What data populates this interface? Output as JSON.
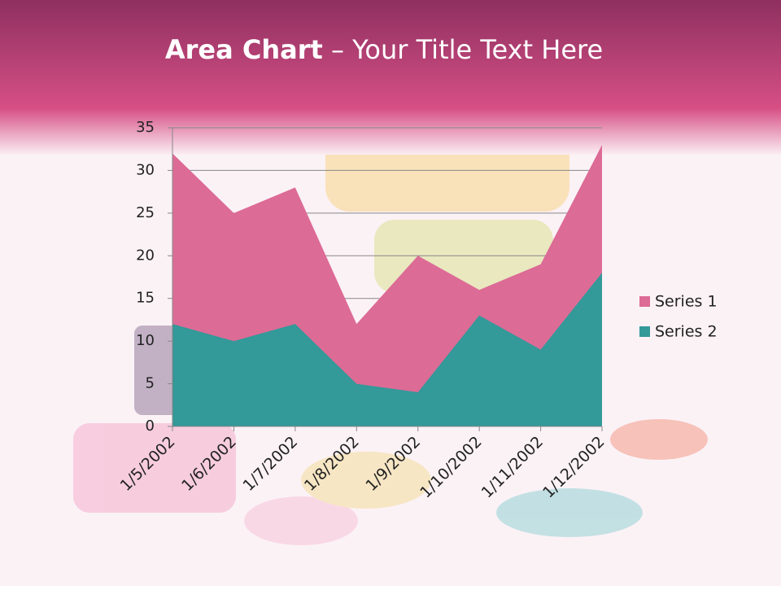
{
  "chart_data": {
    "type": "area",
    "title_bold": "Area Chart",
    "title_rest": "– Your Title Text Here",
    "categories": [
      "1/5/2002",
      "1/6/2002",
      "1/7/2002",
      "1/8/2002",
      "1/9/2002",
      "1/10/2002",
      "1/11/2002",
      "1/12/2002"
    ],
    "series": [
      {
        "name": "Series 1",
        "color": "#dc6b96",
        "values": [
          32,
          25,
          28,
          12,
          20,
          16,
          19,
          33
        ]
      },
      {
        "name": "Series 2",
        "color": "#339999",
        "values": [
          12,
          10,
          12,
          5,
          4,
          13,
          9,
          18
        ]
      }
    ],
    "ylim": [
      0,
      35
    ],
    "yticks": [
      0,
      5,
      10,
      15,
      20,
      25,
      30,
      35
    ],
    "grid": true,
    "legend": "right"
  }
}
